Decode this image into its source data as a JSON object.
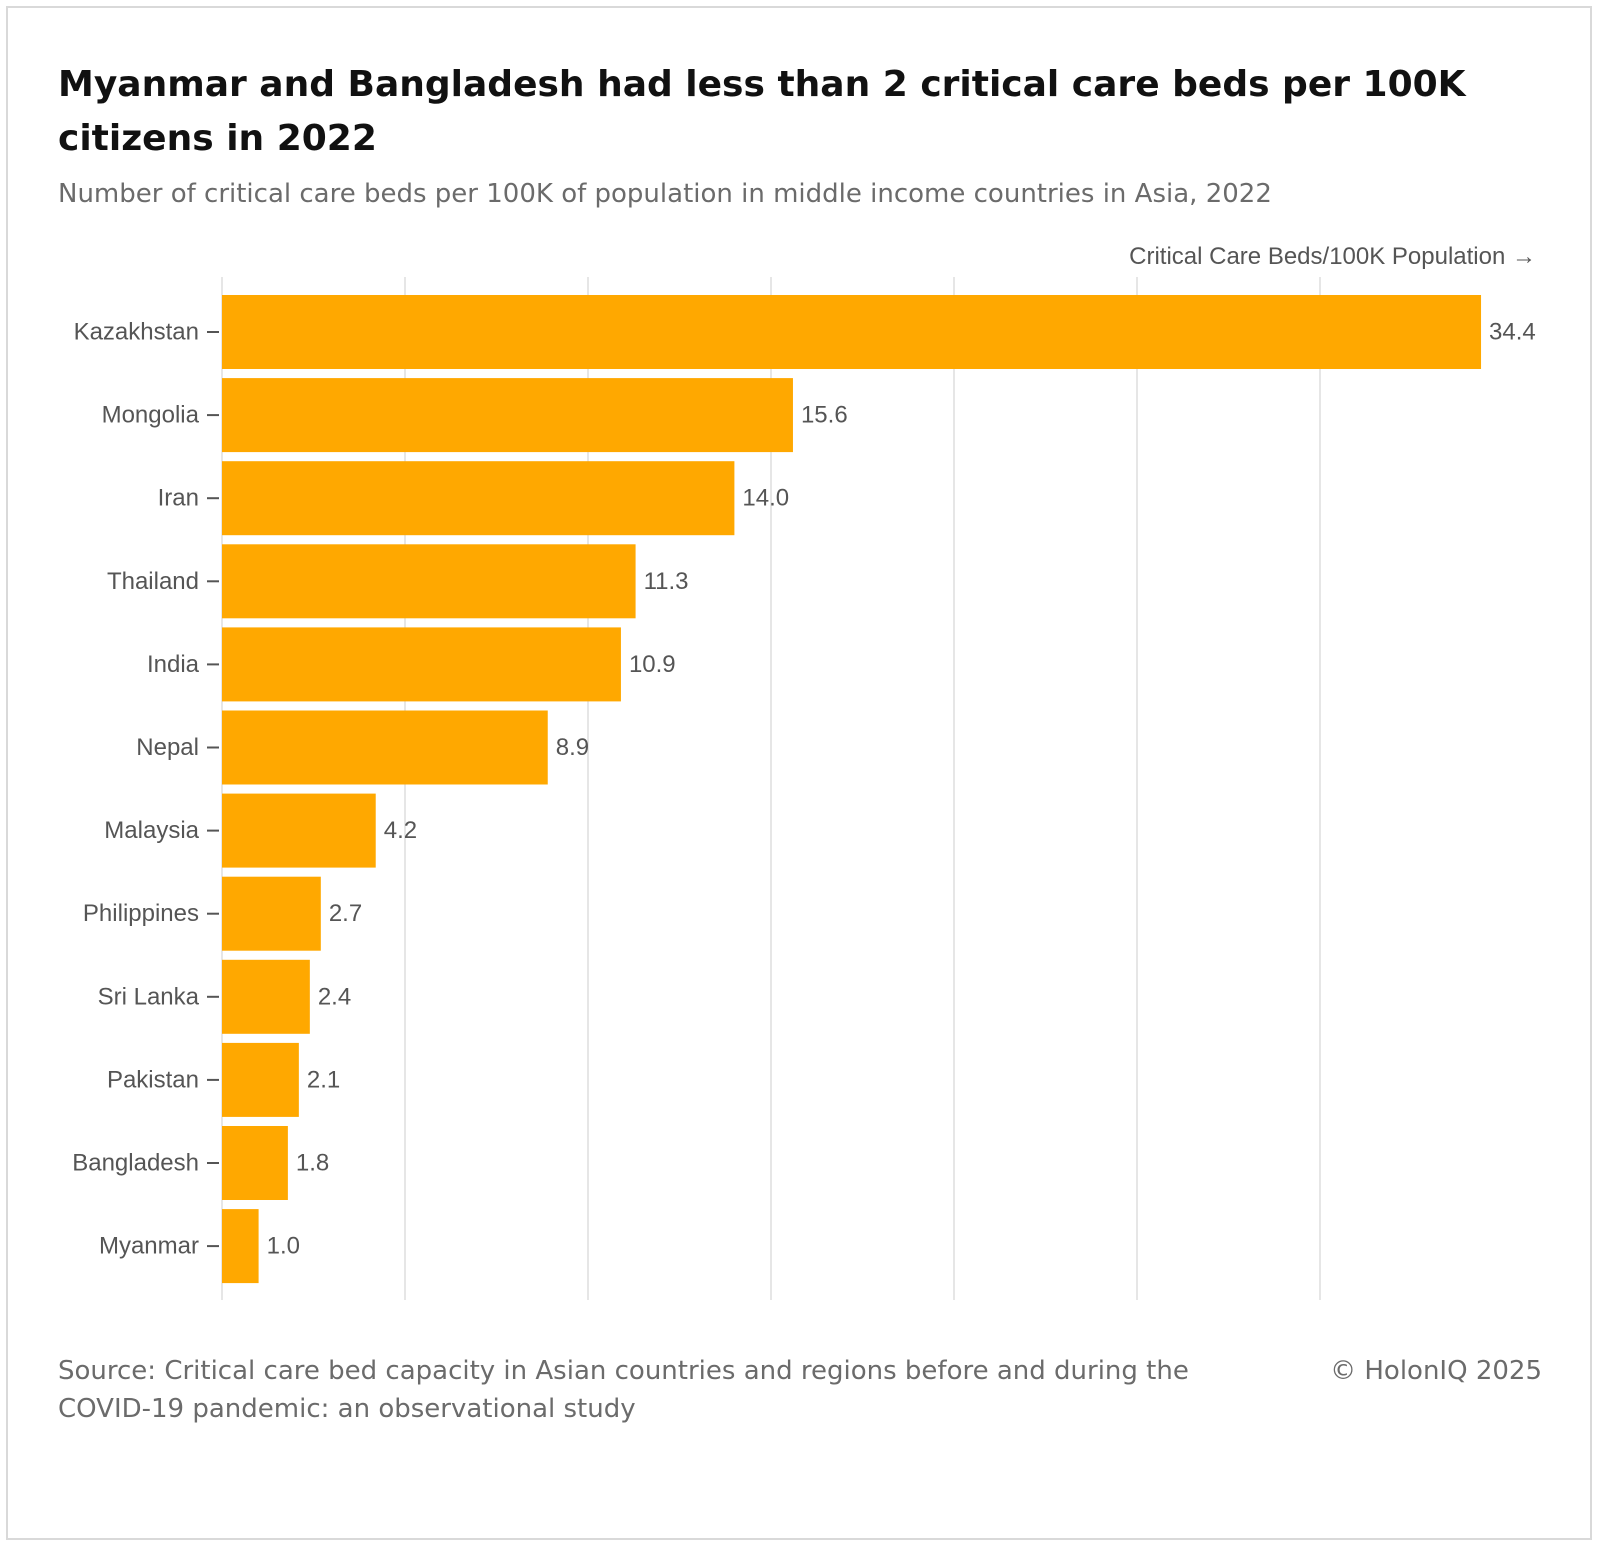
{
  "header": {
    "title": "Myanmar and Bangladesh had less than 2 critical care beds per 100K citizens in 2022",
    "subtitle": "Number of critical care beds per 100K of population in middle income countries in Asia, 2022"
  },
  "footer": {
    "source": "Source: Critical care bed capacity in Asian countries and regions before and during the COVID-19 pandemic: an observational study",
    "copyright": "© HolonIQ 2025"
  },
  "colors": {
    "bar": "#ffa800",
    "grid": "#e6e6e6",
    "text": "#555555"
  },
  "chart_data": {
    "type": "bar",
    "orientation": "horizontal",
    "title": "Myanmar and Bangladesh had less than 2 critical care beds per 100K citizens in 2022",
    "subtitle": "Number of critical care beds per 100K of population in middle income countries in Asia, 2022",
    "xlabel": "Critical Care Beds/100K Population →",
    "ylabel": "",
    "categories": [
      "Kazakhstan",
      "Mongolia",
      "Iran",
      "Thailand",
      "India",
      "Nepal",
      "Malaysia",
      "Philippines",
      "Sri Lanka",
      "Pakistan",
      "Bangladesh",
      "Myanmar"
    ],
    "values": [
      34.4,
      15.6,
      14.0,
      11.3,
      10.9,
      8.9,
      4.2,
      2.7,
      2.4,
      2.1,
      1.8,
      1.0
    ],
    "value_labels": [
      "34.4",
      "15.6",
      "14.0",
      "11.3",
      "10.9",
      "8.9",
      "4.2",
      "2.7",
      "2.4",
      "2.1",
      "1.8",
      "1.0"
    ],
    "xlim": [
      0,
      35
    ],
    "gridlines_x": [
      0,
      5,
      10,
      15,
      20,
      25,
      30
    ],
    "grid": true,
    "legend": "none"
  }
}
